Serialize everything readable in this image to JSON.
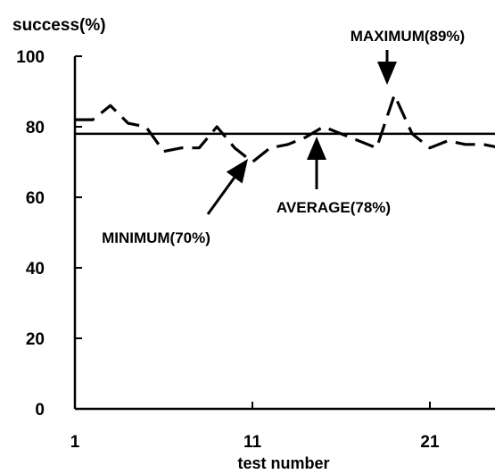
{
  "chart_data": {
    "type": "line",
    "title": "",
    "xlabel": "test number",
    "ylabel": "success(%)",
    "xlim": [
      1,
      25
    ],
    "ylim": [
      0,
      100
    ],
    "x_ticks": [
      1,
      11,
      21
    ],
    "y_ticks": [
      0,
      20,
      40,
      60,
      80,
      100
    ],
    "grid": false,
    "series": [
      {
        "style": "dashed",
        "x": [
          1,
          2,
          3,
          4,
          5,
          6,
          7,
          8,
          9,
          10,
          11,
          12,
          13,
          14,
          15,
          16,
          17,
          18,
          19,
          20,
          21,
          22,
          23,
          24,
          25
        ],
        "y": [
          82,
          82,
          86,
          81,
          80,
          73,
          74,
          74,
          80,
          74,
          70,
          74,
          75,
          77,
          80,
          78,
          76,
          74,
          89,
          78,
          74,
          76,
          75,
          75,
          74
        ]
      }
    ],
    "reference_line": {
      "y": 78,
      "style": "solid"
    },
    "annotations": [
      {
        "text": "MAXIMUM(89%)",
        "x": 19,
        "y": 89
      },
      {
        "text": "AVERAGE(78%)",
        "x": 15,
        "y": 78
      },
      {
        "text": "MINIMUM(70%)",
        "x": 11,
        "y": 70
      }
    ]
  }
}
